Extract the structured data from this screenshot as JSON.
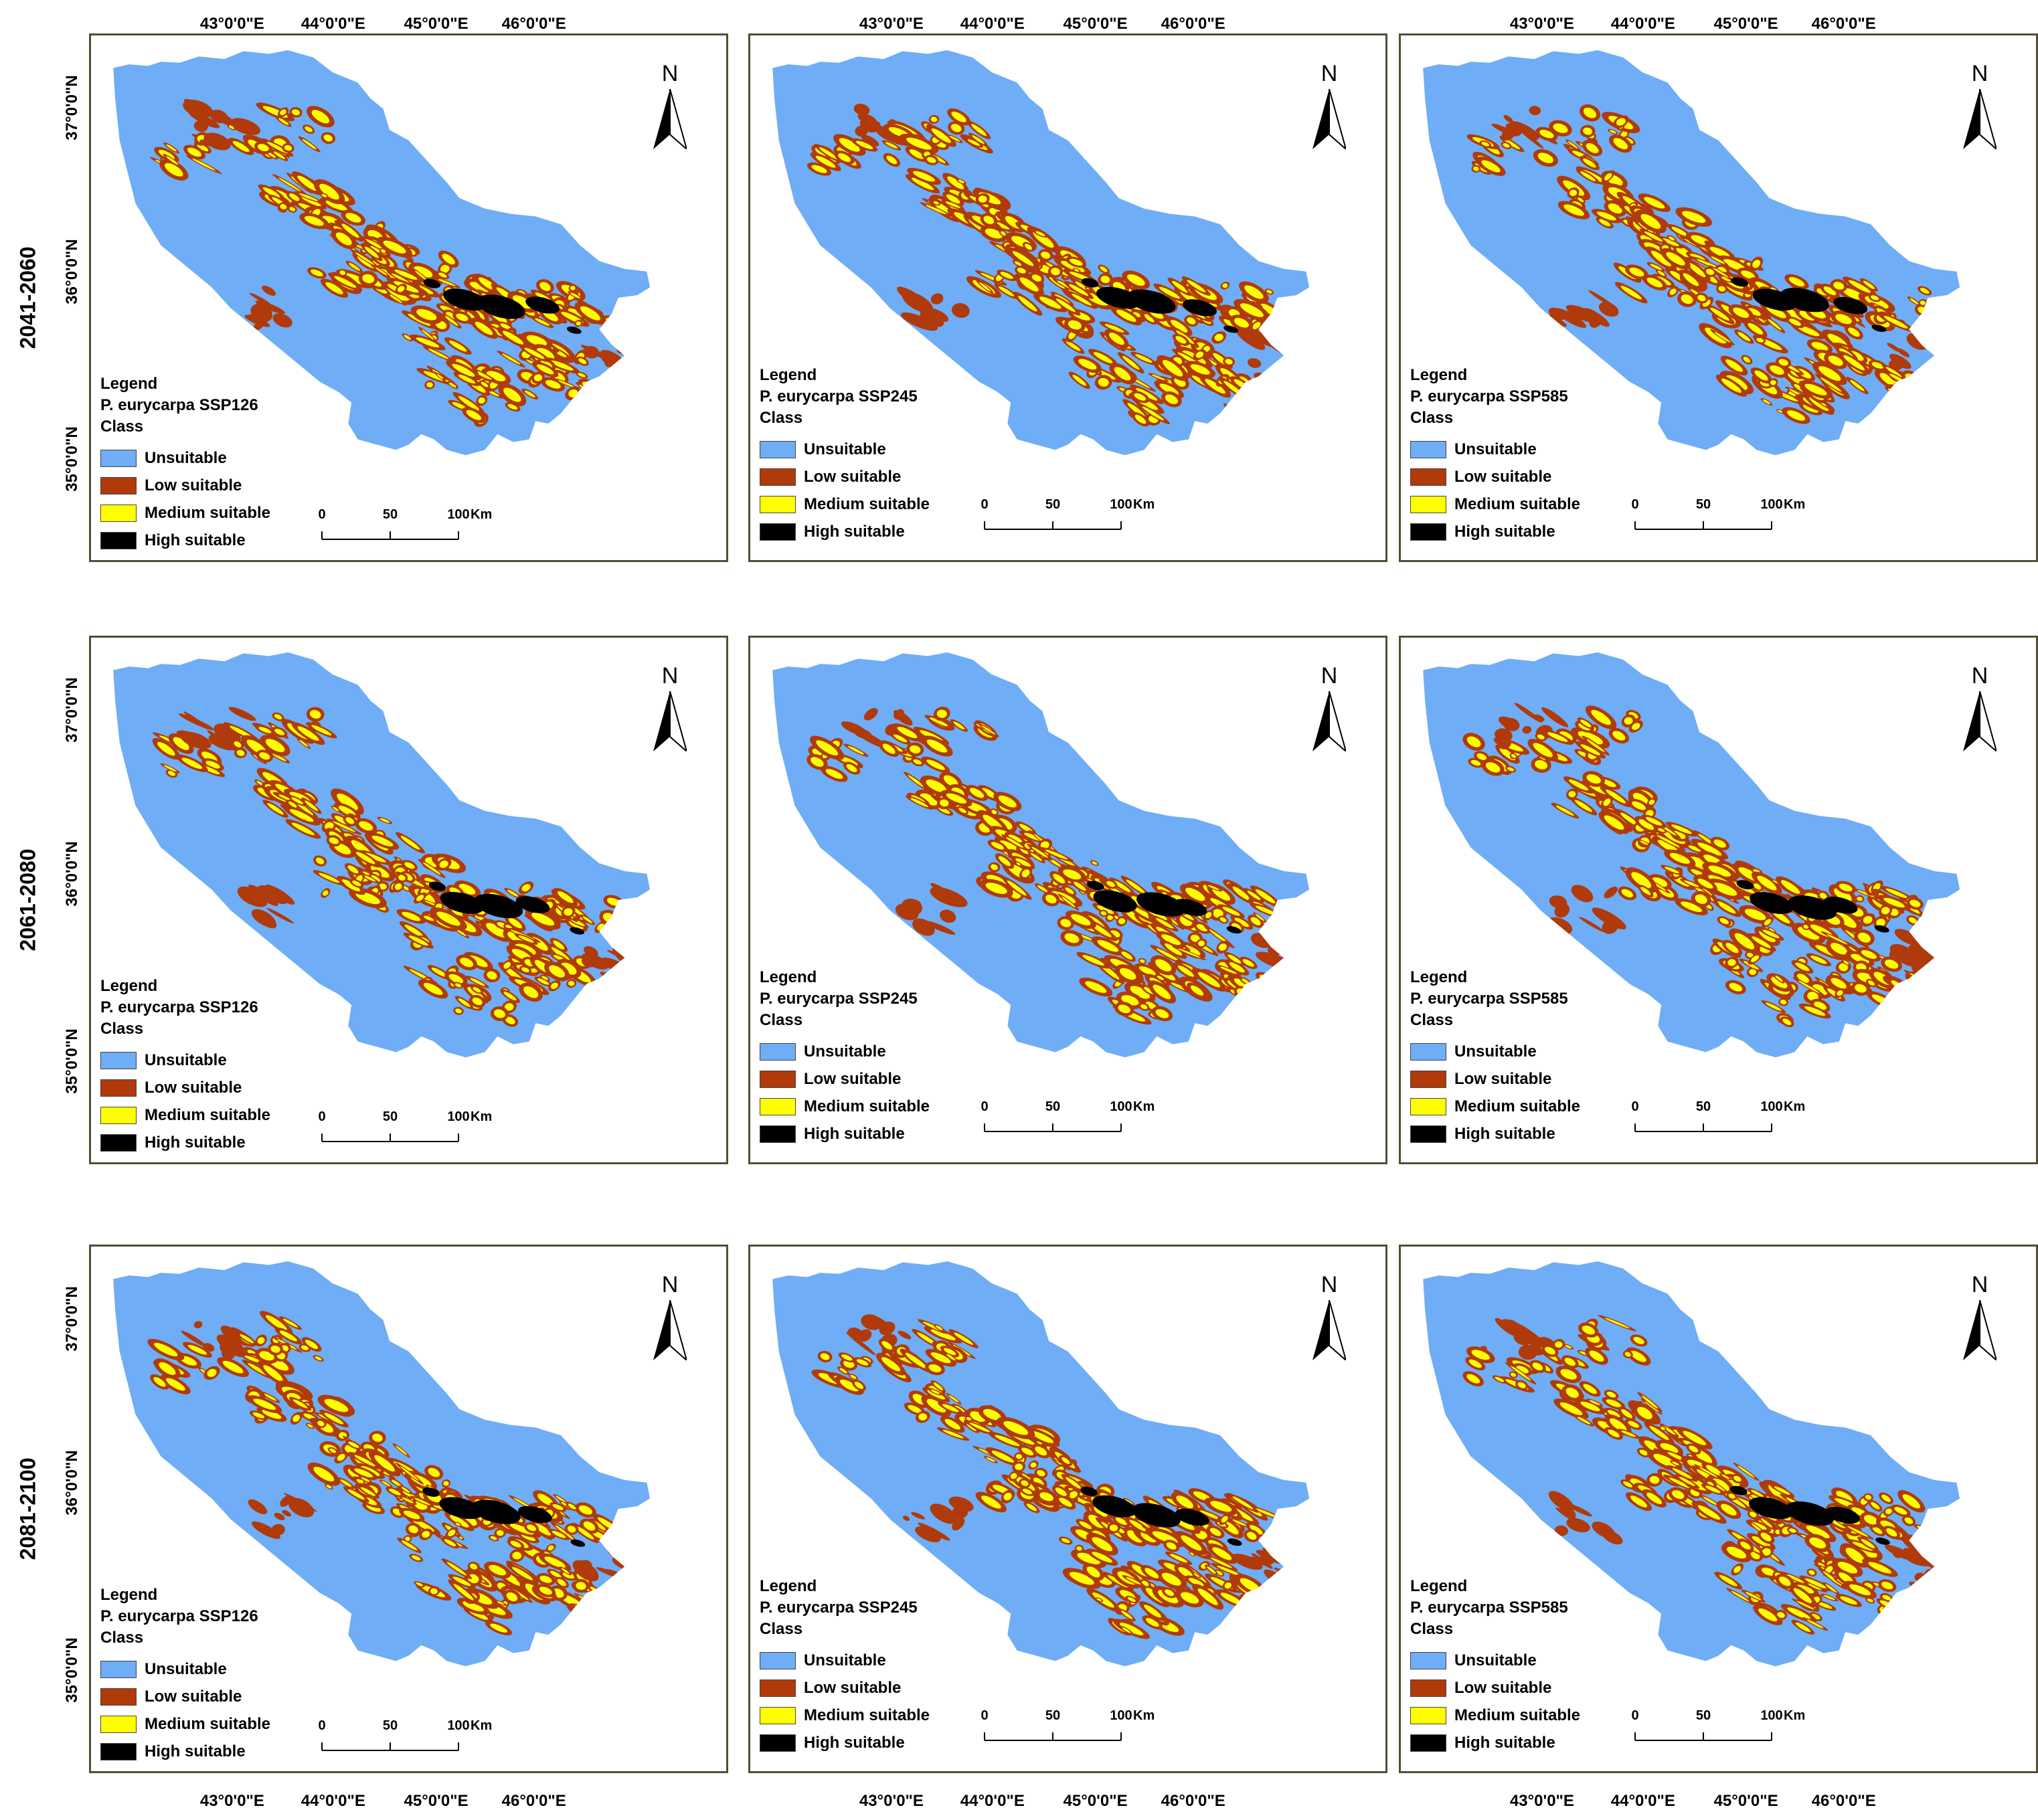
{
  "figure": {
    "legend_title": "Legend",
    "class_label": "Class",
    "row_labels": [
      "2041-2060",
      "2061-2080",
      "2081-2100"
    ],
    "scenario_titles": [
      "P. eurycarpa SSP126",
      "P. eurycarpa SSP245",
      "P. eurycarpa SSP585"
    ],
    "lon_labels": [
      "43°0'0\"E",
      "44°0'0\"E",
      "45°0'0\"E",
      "46°0'0\"E"
    ],
    "lat_labels": [
      "37°0'0\"N",
      "36°0'0\"N",
      "35°0'0\"N"
    ],
    "north_label": "N",
    "scale": {
      "ticks": [
        "0",
        "50",
        "100"
      ],
      "unit": "Km"
    }
  },
  "classes": [
    {
      "name": "Unsuitable",
      "color": "#6fadf6"
    },
    {
      "name": "Low suitable",
      "color": "#b03a0a"
    },
    {
      "name": "Medium suitable",
      "color": "#ffff00"
    },
    {
      "name": "High suitable",
      "color": "#000000"
    }
  ]
}
